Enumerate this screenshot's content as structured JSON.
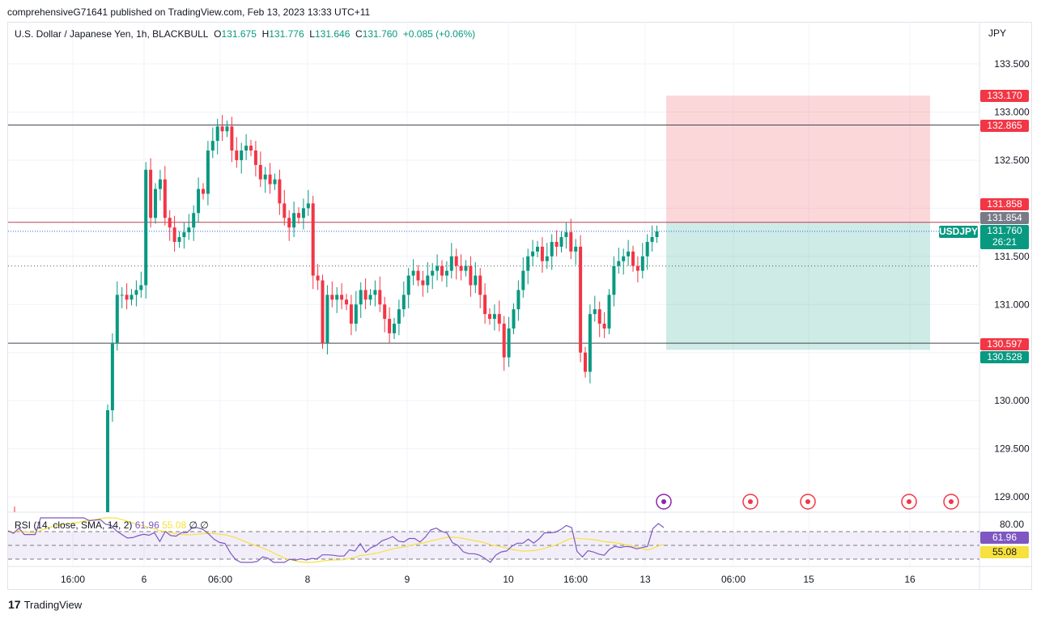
{
  "publisher_line": "comprehensiveG71641 published on TradingView.com, Feb 13, 2023 13:33 UTC+11",
  "legend": {
    "symbol": "U.S. Dollar / Japanese Yen, 1h, BLACKBULL",
    "o_label": "O",
    "o": "131.675",
    "h_label": "H",
    "h": "131.776",
    "l_label": "L",
    "l": "131.646",
    "c_label": "C",
    "c": "131.760",
    "change": "+0.085 (+0.06%)"
  },
  "currency": "JPY",
  "price_axis": [
    "133.500",
    "133.000",
    "132.500",
    "131.500",
    "131.000",
    "130.000",
    "129.500",
    "129.000"
  ],
  "price_tags": {
    "stop": "133.170",
    "level_high": "132.865",
    "entry_red": "131.858",
    "prev": "131.854",
    "symbol": "USDJPY",
    "last": "131.760",
    "countdown": "26:21",
    "level_low": "130.597",
    "target": "130.528"
  },
  "rsi": {
    "label": "RSI (14, close, SMA, 14, 2)",
    "value": "61.96",
    "sma": "55.08",
    "extra1": "∅",
    "extra2": "∅",
    "axis_top": "80.00"
  },
  "time_axis": [
    "16:00",
    "6",
    "06:00",
    "8",
    "9",
    "10",
    "16:00",
    "13",
    "06:00",
    "15",
    "16"
  ],
  "colors": {
    "up": "#089981",
    "down": "#f23645",
    "rsi": "#7e57c2",
    "sma": "#f7e13c"
  },
  "events": [
    "lightning-event-icon",
    "red-flag-event-icon",
    "us-flag-event-icon",
    "us-flag-event-icon",
    "red-flag-event-icon"
  ],
  "brand": "TradingView",
  "chart_data": {
    "type": "candlestick",
    "ylim": [
      128.9,
      133.7
    ],
    "closes": [
      129.9,
      130.6,
      131.1,
      131.1,
      131.05,
      131.1,
      131.15,
      131.2,
      132.4,
      131.9,
      132.2,
      132.3,
      131.9,
      131.8,
      131.65,
      131.7,
      131.75,
      131.8,
      131.95,
      132.2,
      132.15,
      132.6,
      132.7,
      132.85,
      132.8,
      132.85,
      132.6,
      132.5,
      132.6,
      132.65,
      132.6,
      132.45,
      132.3,
      132.35,
      132.25,
      132.3,
      132.05,
      131.9,
      131.8,
      131.95,
      131.9,
      132.0,
      132.05,
      131.3,
      131.25,
      130.6,
      131.1,
      131.05,
      131.1,
      131.05,
      131.0,
      130.8,
      131.0,
      131.15,
      131.05,
      131.1,
      131.15,
      131.0,
      130.85,
      130.7,
      130.8,
      130.95,
      131.1,
      131.3,
      131.35,
      131.25,
      131.2,
      131.3,
      131.35,
      131.4,
      131.3,
      131.35,
      131.5,
      131.4,
      131.35,
      131.4,
      131.2,
      131.3,
      131.1,
      130.9,
      130.85,
      130.9,
      130.8,
      130.45,
      130.75,
      130.95,
      131.15,
      131.35,
      131.5,
      131.55,
      131.6,
      131.45,
      131.5,
      131.65,
      131.6,
      131.7,
      131.75,
      131.55,
      131.6,
      130.5,
      130.3,
      130.9,
      130.95,
      130.8,
      130.75,
      131.1,
      131.4,
      131.45,
      131.5,
      131.55,
      131.4,
      131.35,
      131.5,
      131.65,
      131.7,
      131.76
    ],
    "horizontal_levels": [
      132.865,
      131.854,
      130.597
    ],
    "position": {
      "entry": 131.854,
      "stop": 133.17,
      "target": 130.528
    }
  }
}
